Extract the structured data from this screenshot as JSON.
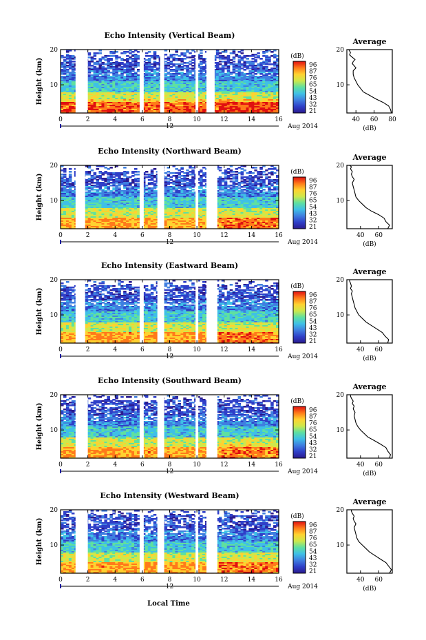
{
  "figure": {
    "xlabel": "Local Time",
    "date_text": "Aug 2014",
    "date_tick": "12",
    "colorbar_title": "(dB)",
    "colorbar_ticks": [
      "96",
      "87",
      "76",
      "65",
      "54",
      "43",
      "32",
      "21"
    ],
    "colors": {
      "colormap": [
        "#2b1b8f",
        "#2f3fc8",
        "#3f7fe0",
        "#3fc0e6",
        "#5fe0a0",
        "#cfe84a",
        "#ffd230",
        "#ff7a1a",
        "#e01010"
      ],
      "date_marker": "#1a1aa0"
    }
  },
  "chart_data": [
    {
      "type": "heatmap",
      "title": "Echo Intensity (Vertical Beam)",
      "ylabel": "Height (km)",
      "xticks": [
        "0",
        "2",
        "4",
        "6",
        "8",
        "10",
        "12",
        "14",
        "16"
      ],
      "yticks": [
        "20",
        "10"
      ],
      "xlim": [
        0,
        16
      ],
      "ylim": [
        2,
        20
      ],
      "data_gaps_hours": [
        [
          1.1,
          2.0
        ],
        [
          5.8,
          6.1
        ],
        [
          7.3,
          7.6
        ],
        [
          9.9,
          10.1
        ],
        [
          10.7,
          11.3
        ]
      ],
      "colorbar_range_db": [
        21,
        96
      ],
      "profile": {
        "title": "Average",
        "xlabel": "(dB)",
        "ylabel": "",
        "xticks": [
          "40",
          "60",
          "80"
        ],
        "yticks": [
          "20",
          "10"
        ],
        "xlim": [
          30,
          80
        ],
        "ylim": [
          2,
          20
        ],
        "x": [
          79,
          78,
          76,
          70,
          62,
          55,
          48,
          45,
          42,
          40,
          38,
          37,
          37,
          40,
          38,
          36,
          37,
          39,
          36,
          33,
          34,
          32
        ],
        "y": [
          2,
          3,
          4,
          5,
          6,
          7,
          8,
          9,
          10,
          11,
          12,
          13,
          14,
          14.8,
          15.4,
          16,
          16.6,
          17.2,
          17.8,
          18.5,
          19.2,
          20
        ]
      }
    },
    {
      "type": "heatmap",
      "title": "Echo Intensity (Northward Beam)",
      "ylabel": "Height (km)",
      "xticks": [
        "0",
        "2",
        "4",
        "6",
        "8",
        "10",
        "12",
        "14",
        "16"
      ],
      "yticks": [
        "20",
        "10"
      ],
      "xlim": [
        0,
        16
      ],
      "ylim": [
        2,
        20
      ],
      "data_gaps_hours": [
        [
          1.1,
          1.8
        ],
        [
          5.8,
          6.1
        ],
        [
          7.1,
          7.6
        ],
        [
          9.9,
          10.1
        ],
        [
          10.7,
          11.5
        ]
      ],
      "colorbar_range_db": [
        21,
        96
      ],
      "profile": {
        "title": "Average",
        "xlabel": "(dB)",
        "ylabel": "",
        "xticks": [
          "40",
          "60"
        ],
        "yticks": [
          "20",
          "10"
        ],
        "xlim": [
          25,
          75
        ],
        "ylim": [
          2,
          20
        ],
        "x": [
          70,
          72,
          68,
          66,
          60,
          52,
          46,
          42,
          38,
          35,
          34,
          33,
          32,
          31,
          33,
          31,
          30,
          31,
          29,
          30,
          28
        ],
        "y": [
          2,
          3,
          4,
          5,
          6,
          7,
          8,
          9,
          10,
          11,
          12,
          13,
          14,
          15,
          16,
          16.8,
          17.5,
          18.2,
          19,
          19.6,
          20
        ]
      }
    },
    {
      "type": "heatmap",
      "title": "Echo Intensity (Eastward Beam)",
      "ylabel": "Height (km)",
      "xticks": [
        "0",
        "2",
        "4",
        "6",
        "8",
        "10",
        "12",
        "14",
        "16"
      ],
      "yticks": [
        "20",
        "10"
      ],
      "xlim": [
        0,
        16
      ],
      "ylim": [
        2,
        20
      ],
      "data_gaps_hours": [
        [
          1.1,
          1.8
        ],
        [
          5.8,
          6.1
        ],
        [
          7.1,
          7.6
        ],
        [
          9.9,
          10.1
        ],
        [
          10.7,
          11.5
        ]
      ],
      "colorbar_range_db": [
        21,
        96
      ],
      "profile": {
        "title": "Average",
        "xlabel": "(dB)",
        "ylabel": "",
        "xticks": [
          "40",
          "60"
        ],
        "yticks": [
          "20",
          "10"
        ],
        "xlim": [
          25,
          75
        ],
        "ylim": [
          2,
          20
        ],
        "x": [
          70,
          71,
          67,
          64,
          58,
          52,
          46,
          42,
          38,
          36,
          34,
          33,
          32,
          31,
          30,
          31,
          29,
          30,
          29,
          28,
          28
        ],
        "y": [
          2,
          3,
          4,
          5,
          6,
          7,
          8,
          9,
          10,
          11,
          12,
          13,
          14,
          15,
          16,
          16.8,
          17.5,
          18.2,
          19,
          19.6,
          20
        ]
      }
    },
    {
      "type": "heatmap",
      "title": "Echo Intensity (Southward Beam)",
      "ylabel": "Height (km)",
      "xticks": [
        "0",
        "2",
        "4",
        "6",
        "8",
        "10",
        "12",
        "14",
        "16"
      ],
      "yticks": [
        "20",
        "10"
      ],
      "xlim": [
        0,
        16
      ],
      "ylim": [
        2,
        20
      ],
      "data_gaps_hours": [
        [
          1.1,
          2.0
        ],
        [
          5.8,
          6.1
        ],
        [
          7.1,
          7.6
        ],
        [
          9.9,
          10.1
        ],
        [
          10.7,
          11.5
        ]
      ],
      "colorbar_range_db": [
        21,
        96
      ],
      "profile": {
        "title": "Average",
        "xlabel": "(dB)",
        "ylabel": "",
        "xticks": [
          "40",
          "60"
        ],
        "yticks": [
          "20",
          "10"
        ],
        "xlim": [
          25,
          75
        ],
        "ylim": [
          2,
          20
        ],
        "x": [
          72,
          73,
          70,
          68,
          62,
          55,
          48,
          44,
          40,
          37,
          35,
          34,
          33,
          34,
          32,
          33,
          31,
          32,
          30,
          29,
          29
        ],
        "y": [
          2,
          3,
          4,
          5,
          6,
          7,
          8,
          9,
          10,
          11,
          12,
          13,
          14,
          15,
          16,
          16.8,
          17.5,
          18.2,
          19,
          19.6,
          20
        ]
      }
    },
    {
      "type": "heatmap",
      "title": "Echo Intensity (Westward Beam)",
      "ylabel": "Height (km)",
      "xticks": [
        "0",
        "2",
        "4",
        "6",
        "8",
        "10",
        "12",
        "14",
        "16"
      ],
      "yticks": [
        "20",
        "10"
      ],
      "xlim": [
        0,
        16
      ],
      "ylim": [
        2,
        20
      ],
      "data_gaps_hours": [
        [
          1.1,
          2.0
        ],
        [
          5.8,
          6.1
        ],
        [
          7.1,
          7.6
        ],
        [
          9.9,
          10.1
        ],
        [
          10.7,
          11.5
        ]
      ],
      "colorbar_range_db": [
        21,
        96
      ],
      "profile": {
        "title": "Average",
        "xlabel": "(dB)",
        "ylabel": "",
        "xticks": [
          "40",
          "60"
        ],
        "yticks": [
          "20",
          "10"
        ],
        "xlim": [
          25,
          75
        ],
        "ylim": [
          2,
          20
        ],
        "x": [
          72,
          74,
          71,
          68,
          62,
          56,
          50,
          46,
          42,
          38,
          36,
          35,
          34,
          33,
          35,
          33,
          32,
          33,
          31,
          30,
          30
        ],
        "y": [
          2,
          3,
          4,
          5,
          6,
          7,
          8,
          9,
          10,
          11,
          12,
          13,
          14,
          15,
          16,
          16.8,
          17.5,
          18.2,
          19,
          19.6,
          20
        ]
      }
    }
  ]
}
